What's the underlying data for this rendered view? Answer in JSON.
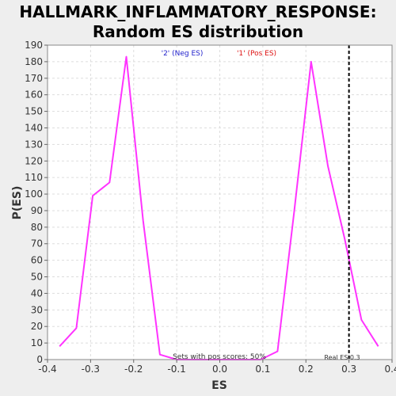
{
  "title_line1": "HALLMARK_INFLAMMATORY_RESPONSE:",
  "title_line2": "Random ES distribution",
  "legend": {
    "neg_label": "'2' (Neg ES)",
    "pos_label": "'1' (Pos ES)"
  },
  "annotations": {
    "pos_scores_text": "Sets with pos scores: 50%",
    "real_es_text": "Real ES 0.3"
  },
  "colors": {
    "series": "#ff33ff",
    "neg_label": "#2222cc",
    "pos_label": "#dd1111",
    "plot_bg": "#ffffff",
    "page_bg": "#eeeeee",
    "grid": "#dddddd",
    "real_es_line": "#000000"
  },
  "chart_data": {
    "type": "line",
    "title": "HALLMARK_INFLAMMATORY_RESPONSE: Random ES distribution",
    "xlabel": "ES",
    "ylabel": "P(ES)",
    "xlim": [
      -0.4,
      0.4
    ],
    "ylim": [
      0,
      190
    ],
    "x_ticks": [
      -0.4,
      -0.3,
      -0.2,
      -0.1,
      0.0,
      0.1,
      0.2,
      0.3,
      0.4
    ],
    "x_tick_labels": [
      "-0.4",
      "-0.3",
      "-0.2",
      "-0.1",
      "0.0",
      "0.1",
      "0.2",
      "0.3",
      "0.4"
    ],
    "y_ticks": [
      0,
      10,
      20,
      30,
      40,
      50,
      60,
      70,
      80,
      90,
      100,
      110,
      120,
      130,
      140,
      150,
      160,
      170,
      180,
      190
    ],
    "y_tick_labels": [
      "0",
      "10",
      "20",
      "30",
      "40",
      "50",
      "60",
      "70",
      "80",
      "90",
      "100",
      "110",
      "120",
      "130",
      "140",
      "150",
      "160",
      "170",
      "180",
      "190"
    ],
    "grid": true,
    "series": [
      {
        "x": [
          -0.372,
          -0.333,
          -0.295,
          -0.256,
          -0.217,
          -0.178,
          -0.139,
          -0.1,
          -0.061,
          -0.022,
          0.017,
          0.056,
          0.095,
          0.134,
          0.173,
          0.212,
          0.251,
          0.29,
          0.329,
          0.368
        ],
        "y": [
          8,
          19,
          99,
          107,
          183,
          84,
          3,
          0,
          0,
          0,
          0,
          0,
          0,
          5,
          90,
          180,
          117,
          73,
          24,
          8
        ]
      }
    ],
    "real_es": 0.3
  }
}
